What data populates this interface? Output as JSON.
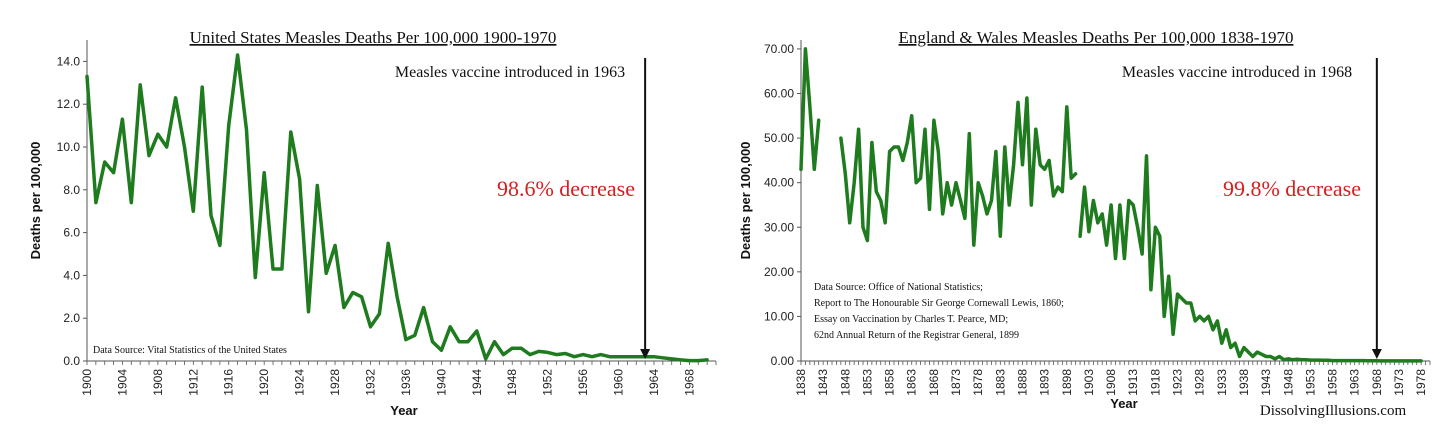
{
  "chart_data": [
    {
      "type": "line",
      "title": "United States Measles Deaths Per 100,000 1900-1970",
      "xlabel": "Year",
      "ylabel": "Deaths per 100,000",
      "xlim": [
        1900,
        1971
      ],
      "ylim": [
        0,
        15
      ],
      "ytick_values": [
        0,
        2,
        4,
        6,
        8,
        10,
        12,
        14
      ],
      "ytick_labels": [
        "0.0",
        "2.0",
        "4.0",
        "6.0",
        "8.0",
        "10.0",
        "12.0",
        "14.0"
      ],
      "xtick_values": [
        1900,
        1904,
        1908,
        1912,
        1916,
        1920,
        1924,
        1928,
        1932,
        1936,
        1940,
        1944,
        1948,
        1952,
        1956,
        1960,
        1964,
        1968
      ],
      "xtick_labels": [
        "1900",
        "1904",
        "1908",
        "1912",
        "1916",
        "1920",
        "1924",
        "1928",
        "1932",
        "1936",
        "1940",
        "1944",
        "1948",
        "1952",
        "1956",
        "1960",
        "1964",
        "1968"
      ],
      "grid": false,
      "color": "#1e7b1e",
      "annotation_vaccine": "Measles vaccine introduced in 1963",
      "vaccine_year": 1963,
      "annotation_decrease": "98.6% decrease",
      "decrease_color": "#d42020",
      "source_note": [
        "Data Source:  Vital Statistics of the United States"
      ],
      "series": [
        {
          "segments": [
            [
              [
                1900,
                13.3
              ],
              [
                1901,
                7.4
              ],
              [
                1902,
                9.3
              ],
              [
                1903,
                8.8
              ],
              [
                1904,
                11.3
              ],
              [
                1905,
                7.4
              ],
              [
                1906,
                12.9
              ],
              [
                1907,
                9.6
              ],
              [
                1908,
                10.6
              ],
              [
                1909,
                10.0
              ],
              [
                1910,
                12.3
              ],
              [
                1911,
                10.0
              ],
              [
                1912,
                7.0
              ],
              [
                1913,
                12.8
              ],
              [
                1914,
                6.8
              ],
              [
                1915,
                5.4
              ],
              [
                1916,
                11.0
              ],
              [
                1917,
                14.3
              ],
              [
                1918,
                10.8
              ],
              [
                1919,
                3.9
              ],
              [
                1920,
                8.8
              ],
              [
                1921,
                4.3
              ],
              [
                1922,
                4.3
              ],
              [
                1923,
                10.7
              ],
              [
                1924,
                8.5
              ],
              [
                1925,
                2.3
              ],
              [
                1926,
                8.2
              ],
              [
                1927,
                4.1
              ],
              [
                1928,
                5.4
              ],
              [
                1929,
                2.5
              ],
              [
                1930,
                3.2
              ],
              [
                1931,
                3.0
              ],
              [
                1932,
                1.6
              ],
              [
                1933,
                2.2
              ],
              [
                1934,
                5.5
              ],
              [
                1935,
                3.0
              ],
              [
                1936,
                1.0
              ],
              [
                1937,
                1.2
              ],
              [
                1938,
                2.5
              ],
              [
                1939,
                0.9
              ],
              [
                1940,
                0.5
              ],
              [
                1941,
                1.6
              ],
              [
                1942,
                0.9
              ],
              [
                1943,
                0.9
              ],
              [
                1944,
                1.4
              ],
              [
                1945,
                0.1
              ],
              [
                1946,
                0.9
              ],
              [
                1947,
                0.3
              ],
              [
                1948,
                0.6
              ],
              [
                1949,
                0.6
              ],
              [
                1950,
                0.3
              ],
              [
                1951,
                0.45
              ],
              [
                1952,
                0.4
              ],
              [
                1953,
                0.3
              ],
              [
                1954,
                0.35
              ],
              [
                1955,
                0.2
              ],
              [
                1956,
                0.3
              ],
              [
                1957,
                0.2
              ],
              [
                1958,
                0.3
              ],
              [
                1959,
                0.2
              ],
              [
                1960,
                0.2
              ],
              [
                1961,
                0.2
              ],
              [
                1962,
                0.2
              ],
              [
                1963,
                0.2
              ],
              [
                1964,
                0.2
              ],
              [
                1965,
                0.15
              ],
              [
                1966,
                0.1
              ],
              [
                1967,
                0.05
              ],
              [
                1968,
                0.02
              ],
              [
                1969,
                0.02
              ],
              [
                1970,
                0.05
              ]
            ]
          ]
        }
      ]
    },
    {
      "type": "line",
      "title": "England & Wales Measles Deaths Per 100,000 1838-1970",
      "xlabel": "Year",
      "ylabel": "Deaths per 100,000",
      "xlim": [
        1838,
        1980
      ],
      "ylim": [
        0,
        72
      ],
      "ytick_values": [
        0,
        10,
        20,
        30,
        40,
        50,
        60,
        70
      ],
      "ytick_labels": [
        "0.00",
        "10.00",
        "20.00",
        "30.00",
        "40.00",
        "50.00",
        "60.00",
        "70.00"
      ],
      "xtick_values": [
        1838,
        1843,
        1848,
        1853,
        1858,
        1863,
        1868,
        1873,
        1878,
        1883,
        1888,
        1893,
        1898,
        1903,
        1908,
        1913,
        1918,
        1923,
        1928,
        1933,
        1938,
        1943,
        1948,
        1953,
        1958,
        1963,
        1968,
        1973,
        1978
      ],
      "xtick_labels": [
        "1838",
        "1843",
        "1848",
        "1853",
        "1858",
        "1863",
        "1868",
        "1873",
        "1878",
        "1883",
        "1888",
        "1893",
        "1898",
        "1903",
        "1908",
        "1913",
        "1918",
        "1923",
        "1928",
        "1933",
        "1938",
        "1943",
        "1948",
        "1953",
        "1958",
        "1963",
        "1968",
        "1973",
        "1978"
      ],
      "grid": false,
      "color": "#1e7b1e",
      "annotation_vaccine": "Measles vaccine introduced in 1968",
      "vaccine_year": 1968,
      "annotation_decrease": "99.8% decrease",
      "decrease_color": "#d42020",
      "source_note": [
        "Data Source:  Office of National Statistics;",
        "Report to The Honourable Sir George Cornewall Lewis, 1860;",
        "Essay on Vaccination by Charles T. Pearce, MD;",
        "62nd Annual Return of the Registrar General, 1899"
      ],
      "watermark": "DissolvingIllusions.com",
      "series": [
        {
          "segments": [
            [
              [
                1838,
                43
              ],
              [
                1839,
                70
              ],
              [
                1840,
                57
              ],
              [
                1841,
                43
              ],
              [
                1842,
                54
              ]
            ],
            [
              [
                1847,
                50
              ],
              [
                1848,
                42
              ],
              [
                1849,
                31
              ],
              [
                1850,
                40
              ],
              [
                1851,
                52
              ],
              [
                1852,
                30
              ],
              [
                1853,
                27
              ],
              [
                1854,
                49
              ],
              [
                1855,
                38
              ],
              [
                1856,
                36
              ],
              [
                1857,
                31
              ],
              [
                1858,
                47
              ],
              [
                1859,
                48
              ],
              [
                1860,
                48
              ],
              [
                1861,
                45
              ],
              [
                1862,
                49
              ],
              [
                1863,
                55
              ],
              [
                1864,
                40
              ],
              [
                1865,
                41
              ],
              [
                1866,
                52
              ],
              [
                1867,
                34
              ],
              [
                1868,
                54
              ],
              [
                1869,
                47
              ],
              [
                1870,
                33
              ],
              [
                1871,
                40
              ],
              [
                1872,
                35
              ],
              [
                1873,
                40
              ],
              [
                1874,
                36
              ],
              [
                1875,
                32
              ],
              [
                1876,
                51
              ],
              [
                1877,
                26
              ],
              [
                1878,
                40
              ],
              [
                1879,
                37
              ],
              [
                1880,
                33
              ],
              [
                1881,
                36
              ],
              [
                1882,
                47
              ],
              [
                1883,
                28
              ],
              [
                1884,
                48
              ],
              [
                1885,
                35
              ],
              [
                1886,
                44
              ],
              [
                1887,
                58
              ],
              [
                1888,
                44
              ],
              [
                1889,
                59
              ],
              [
                1890,
                35
              ],
              [
                1891,
                52
              ],
              [
                1892,
                44
              ],
              [
                1893,
                43
              ],
              [
                1894,
                45
              ],
              [
                1895,
                37
              ],
              [
                1896,
                39
              ],
              [
                1897,
                38
              ],
              [
                1898,
                57
              ],
              [
                1899,
                41
              ],
              [
                1900,
                42
              ]
            ],
            [
              [
                1901,
                28
              ],
              [
                1902,
                39
              ],
              [
                1903,
                29
              ],
              [
                1904,
                36
              ],
              [
                1905,
                31
              ],
              [
                1906,
                33
              ],
              [
                1907,
                26
              ],
              [
                1908,
                35
              ],
              [
                1909,
                23
              ],
              [
                1910,
                35
              ],
              [
                1911,
                23
              ],
              [
                1912,
                36
              ],
              [
                1913,
                35
              ],
              [
                1914,
                30
              ],
              [
                1915,
                24
              ],
              [
                1916,
                46
              ],
              [
                1917,
                16
              ],
              [
                1918,
                30
              ],
              [
                1919,
                28
              ],
              [
                1920,
                10
              ],
              [
                1921,
                19
              ],
              [
                1922,
                6
              ],
              [
                1923,
                15
              ],
              [
                1924,
                14
              ],
              [
                1925,
                13
              ],
              [
                1926,
                13
              ],
              [
                1927,
                9
              ],
              [
                1928,
                10
              ],
              [
                1929,
                9
              ],
              [
                1930,
                10
              ],
              [
                1931,
                7
              ],
              [
                1932,
                9
              ],
              [
                1933,
                4
              ],
              [
                1934,
                7
              ],
              [
                1935,
                3
              ],
              [
                1936,
                4
              ],
              [
                1937,
                1
              ],
              [
                1938,
                3
              ],
              [
                1939,
                2
              ],
              [
                1940,
                1
              ],
              [
                1941,
                2
              ],
              [
                1942,
                1.5
              ],
              [
                1943,
                1
              ],
              [
                1944,
                1
              ],
              [
                1945,
                0.5
              ],
              [
                1946,
                1
              ],
              [
                1947,
                0.3
              ],
              [
                1948,
                0.5
              ],
              [
                1949,
                0.3
              ],
              [
                1950,
                0.4
              ],
              [
                1951,
                0.3
              ],
              [
                1952,
                0.3
              ],
              [
                1953,
                0.2
              ],
              [
                1954,
                0.2
              ],
              [
                1955,
                0.2
              ],
              [
                1956,
                0.15
              ],
              [
                1957,
                0.15
              ],
              [
                1958,
                0.1
              ],
              [
                1959,
                0.1
              ],
              [
                1960,
                0.1
              ],
              [
                1961,
                0.1
              ],
              [
                1962,
                0.1
              ],
              [
                1963,
                0.1
              ],
              [
                1964,
                0.1
              ],
              [
                1965,
                0.1
              ],
              [
                1966,
                0.05
              ],
              [
                1967,
                0.05
              ],
              [
                1968,
                0.05
              ],
              [
                1969,
                0.03
              ],
              [
                1970,
                0.03
              ],
              [
                1971,
                0.02
              ],
              [
                1972,
                0.02
              ],
              [
                1973,
                0.02
              ],
              [
                1974,
                0.02
              ],
              [
                1975,
                0.02
              ],
              [
                1976,
                0.02
              ],
              [
                1977,
                0.02
              ],
              [
                1978,
                0.02
              ]
            ]
          ]
        }
      ]
    }
  ]
}
